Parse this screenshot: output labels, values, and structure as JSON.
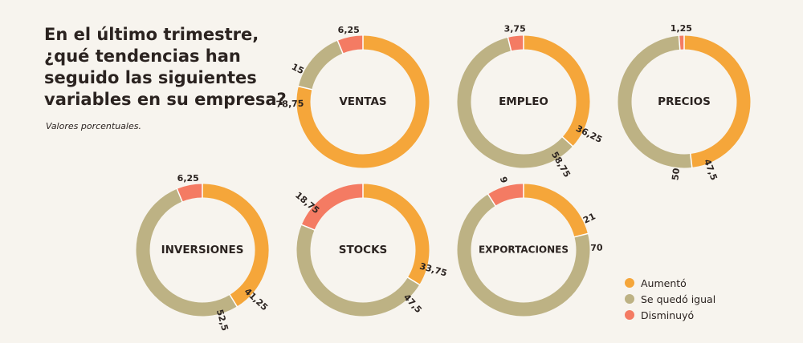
{
  "title_lines": [
    "En el último trimestre,",
    "¿qué tendencias han",
    "seguido las siguientes",
    "variables en su empresa?"
  ],
  "subtitle": "Valores porcentuales.",
  "colors": {
    "aumento": "#f5a63a",
    "igual": "#bdb284",
    "disminuyo": "#f47b63"
  },
  "legend": [
    {
      "label": "Aumentó",
      "color": "#f5a63a"
    },
    {
      "label": "Se quedó igual",
      "color": "#bdb284"
    },
    {
      "label": "Disminuyó",
      "color": "#f47b63"
    }
  ],
  "chart_data": {
    "type": "pie",
    "series_names": [
      "Aumentó",
      "Se quedó igual",
      "Disminuyó"
    ],
    "charts": [
      {
        "name": "VENTAS",
        "values": [
          78.75,
          15,
          6.25
        ],
        "labels": [
          "78,75",
          "15",
          "6,25"
        ]
      },
      {
        "name": "EMPLEO",
        "values": [
          36.25,
          58.75,
          3.75
        ],
        "labels": [
          "36,25",
          "58,75",
          "3,75"
        ]
      },
      {
        "name": "PRECIOS",
        "values": [
          47.5,
          50,
          1.25
        ],
        "labels": [
          "47,5",
          "50",
          "1,25"
        ]
      },
      {
        "name": "INVERSIONES",
        "values": [
          41.25,
          52.5,
          6.25
        ],
        "labels": [
          "41,25",
          "52,5",
          "6,25"
        ]
      },
      {
        "name": "STOCKS",
        "values": [
          33.75,
          47.5,
          18.75
        ],
        "labels": [
          "33,75",
          "47,5",
          "18,75"
        ]
      },
      {
        "name": "EXPORTACIONES",
        "values": [
          21,
          70,
          9
        ],
        "labels": [
          "21",
          "70",
          "9"
        ]
      }
    ]
  }
}
